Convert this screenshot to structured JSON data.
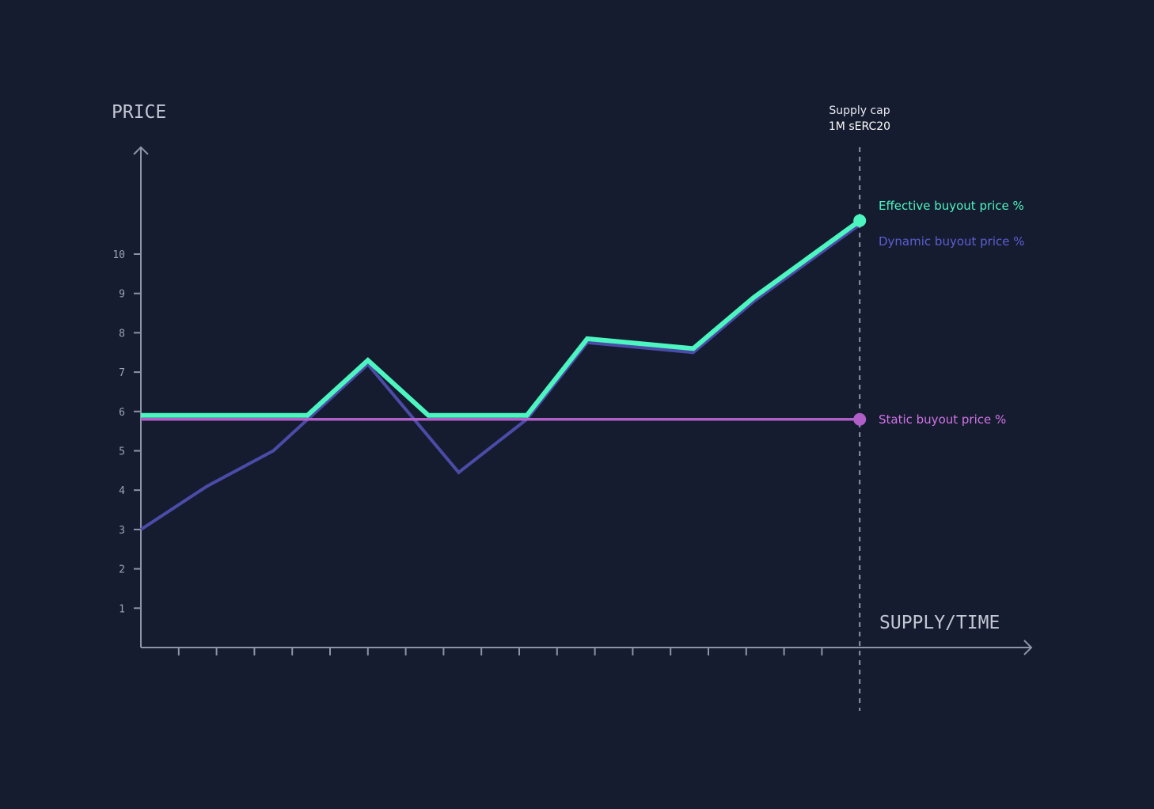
{
  "colors": {
    "background": "#151c2f",
    "axis": "#8e93a8",
    "effective": "#4df5c0",
    "dynamic": "#4b4ba8",
    "static": "#b05fc9",
    "cap_line": "#8e93a8",
    "label_dynamic": "#5d5ed4",
    "label_static": "#d173e6"
  },
  "chart_data": {
    "type": "line",
    "ylabel": "PRICE",
    "xlabel": "SUPPLY/TIME",
    "y_ticks": [
      "1",
      "2",
      "3",
      "4",
      "5",
      "6",
      "7",
      "8",
      "9",
      "10"
    ],
    "x_tick_count": 18,
    "ylim": [
      0,
      13
    ],
    "xlim": [
      0,
      23.5
    ],
    "cap": {
      "x": 19,
      "label_line1": "Supply cap",
      "label_line2": "1M sERC20"
    },
    "series": [
      {
        "name": "Effective buyout price %",
        "color": "#4df5c0",
        "x": [
          0,
          4.4,
          6,
          7.6,
          10.2,
          11.8,
          14.6,
          16.2,
          19
        ],
        "y": [
          5.9,
          5.9,
          7.3,
          5.9,
          5.9,
          7.85,
          7.6,
          8.9,
          10.85
        ]
      },
      {
        "name": "Dynamic buyout price %",
        "color": "#4b4ba8",
        "x": [
          0,
          1.75,
          3.5,
          6,
          8.4,
          10.2,
          11.8,
          14.6,
          16.2,
          19
        ],
        "y": [
          3.0,
          4.1,
          5.0,
          7.2,
          4.45,
          5.8,
          7.75,
          7.5,
          8.8,
          10.75
        ]
      },
      {
        "name": "Static buyout price %",
        "color": "#b05fc9",
        "x": [
          0,
          19
        ],
        "y": [
          5.8,
          5.8
        ]
      }
    ]
  }
}
